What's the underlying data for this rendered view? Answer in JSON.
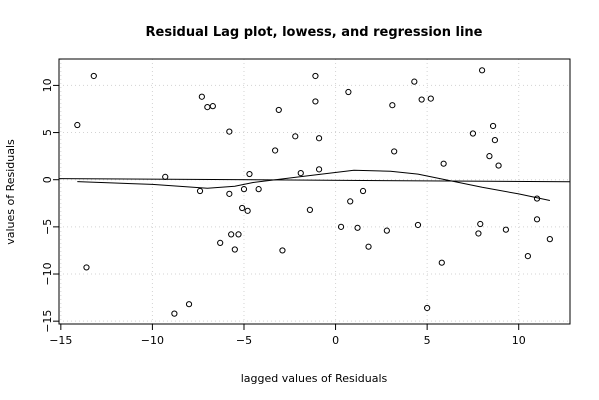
{
  "chart_data": {
    "type": "scatter",
    "title": "Residual Lag plot, lowess, and regression line",
    "xlabel": "lagged values of Residuals",
    "ylabel": "values of Residuals",
    "xlim": [
      -15.1,
      12.8
    ],
    "ylim": [
      -15.3,
      12.8
    ],
    "x_ticks": [
      -15,
      -10,
      -5,
      0,
      5,
      10
    ],
    "y_ticks": [
      -15,
      -10,
      -5,
      0,
      5,
      10
    ],
    "grid": true,
    "points": [
      {
        "x": -14.1,
        "y": 5.8
      },
      {
        "x": -13.6,
        "y": -9.3
      },
      {
        "x": -13.2,
        "y": 11.0
      },
      {
        "x": -9.3,
        "y": 0.3
      },
      {
        "x": -8.8,
        "y": -14.2
      },
      {
        "x": -8.0,
        "y": -13.2
      },
      {
        "x": -7.4,
        "y": -1.2
      },
      {
        "x": -7.3,
        "y": 8.8
      },
      {
        "x": -7.0,
        "y": 7.7
      },
      {
        "x": -6.7,
        "y": 7.8
      },
      {
        "x": -6.3,
        "y": -6.7
      },
      {
        "x": -5.8,
        "y": -1.5
      },
      {
        "x": -5.8,
        "y": 5.1
      },
      {
        "x": -5.7,
        "y": -5.8
      },
      {
        "x": -5.5,
        "y": -7.4
      },
      {
        "x": -5.3,
        "y": -5.8
      },
      {
        "x": -5.1,
        "y": -3.0
      },
      {
        "x": -5.0,
        "y": -1.0
      },
      {
        "x": -4.8,
        "y": -3.3
      },
      {
        "x": -4.7,
        "y": 0.6
      },
      {
        "x": -4.2,
        "y": -1.0
      },
      {
        "x": -3.3,
        "y": 3.1
      },
      {
        "x": -3.1,
        "y": 7.4
      },
      {
        "x": -2.9,
        "y": -7.5
      },
      {
        "x": -2.2,
        "y": 4.6
      },
      {
        "x": -1.9,
        "y": 0.7
      },
      {
        "x": -1.4,
        "y": -3.2
      },
      {
        "x": -1.1,
        "y": 11.0
      },
      {
        "x": -1.1,
        "y": 8.3
      },
      {
        "x": -0.9,
        "y": 4.4
      },
      {
        "x": -0.9,
        "y": 1.1
      },
      {
        "x": 0.3,
        "y": -5.0
      },
      {
        "x": 0.7,
        "y": 9.3
      },
      {
        "x": 0.8,
        "y": -2.3
      },
      {
        "x": 1.2,
        "y": -5.1
      },
      {
        "x": 1.5,
        "y": -1.2
      },
      {
        "x": 1.8,
        "y": -7.1
      },
      {
        "x": 2.8,
        "y": -5.4
      },
      {
        "x": 3.1,
        "y": 7.9
      },
      {
        "x": 3.2,
        "y": 3.0
      },
      {
        "x": 4.3,
        "y": 10.4
      },
      {
        "x": 4.5,
        "y": -4.8
      },
      {
        "x": 4.7,
        "y": 8.5
      },
      {
        "x": 5.0,
        "y": -13.6
      },
      {
        "x": 5.2,
        "y": 8.6
      },
      {
        "x": 5.8,
        "y": -8.8
      },
      {
        "x": 5.9,
        "y": 1.7
      },
      {
        "x": 7.5,
        "y": 4.9
      },
      {
        "x": 7.8,
        "y": -5.7
      },
      {
        "x": 7.9,
        "y": -4.7
      },
      {
        "x": 8.0,
        "y": 11.6
      },
      {
        "x": 8.4,
        "y": 2.5
      },
      {
        "x": 8.6,
        "y": 5.7
      },
      {
        "x": 8.7,
        "y": 4.2
      },
      {
        "x": 8.9,
        "y": 1.5
      },
      {
        "x": 9.3,
        "y": -5.3
      },
      {
        "x": 10.5,
        "y": -8.1
      },
      {
        "x": 11.0,
        "y": -2.0
      },
      {
        "x": 11.0,
        "y": -4.2
      },
      {
        "x": 11.7,
        "y": -6.3
      }
    ],
    "lowess": [
      {
        "x": -14.1,
        "y": -0.2
      },
      {
        "x": -10.0,
        "y": -0.5
      },
      {
        "x": -7.0,
        "y": -0.9
      },
      {
        "x": -5.5,
        "y": -0.7
      },
      {
        "x": -4.5,
        "y": -0.3
      },
      {
        "x": -2.0,
        "y": 0.3
      },
      {
        "x": 1.0,
        "y": 1.0
      },
      {
        "x": 3.0,
        "y": 0.9
      },
      {
        "x": 4.5,
        "y": 0.6
      },
      {
        "x": 6.0,
        "y": 0.0
      },
      {
        "x": 8.0,
        "y": -0.8
      },
      {
        "x": 10.0,
        "y": -1.5
      },
      {
        "x": 11.7,
        "y": -2.2
      }
    ],
    "regression": [
      {
        "x": -15.1,
        "y": 0.12
      },
      {
        "x": 12.8,
        "y": -0.22
      }
    ]
  }
}
